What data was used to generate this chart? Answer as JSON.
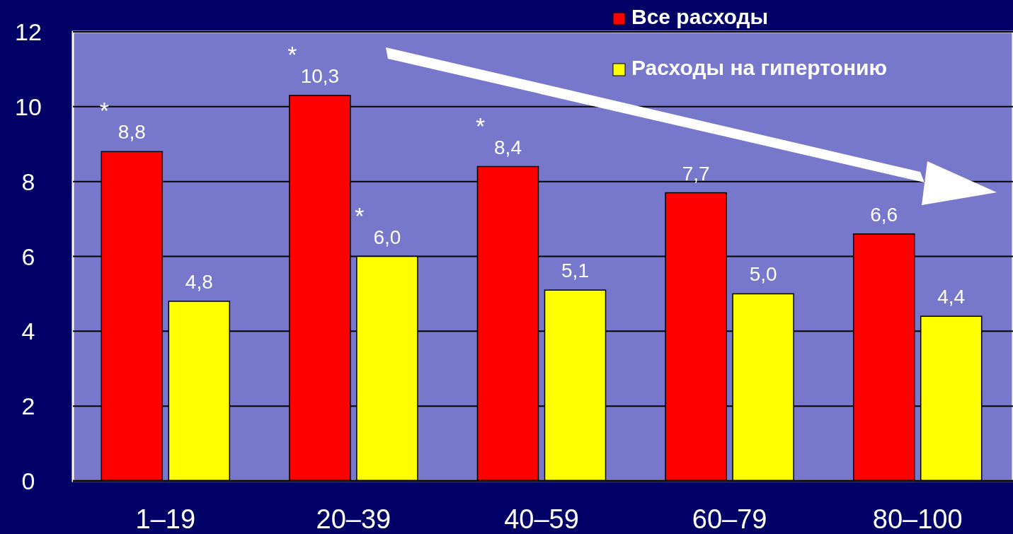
{
  "chart_data": {
    "type": "bar",
    "categories": [
      "1–19",
      "20–39",
      "40–59",
      "60–79",
      "80–100"
    ],
    "series": [
      {
        "name": "Все расходы",
        "color": "#ff0000",
        "values": [
          8.8,
          10.3,
          8.4,
          7.7,
          6.6
        ],
        "value_labels": [
          "8,8",
          "10,3",
          "8,4",
          "7,7",
          "6,6"
        ]
      },
      {
        "name": "Расходы на гипертонию",
        "color": "#ffff00",
        "values": [
          4.8,
          6.0,
          5.1,
          5.0,
          4.4
        ],
        "value_labels": [
          "4,8",
          "6,0",
          "5,1",
          "5,0",
          "4,4"
        ]
      }
    ],
    "ylim": [
      0,
      12
    ],
    "yticks": [
      0,
      2,
      4,
      6,
      8,
      10,
      12
    ],
    "grid": "y",
    "legend": "top right",
    "annotations": [
      {
        "text": "*",
        "x": "1–19",
        "y": 8.8
      },
      {
        "text": "*",
        "x": "20–39",
        "y": 10.3
      },
      {
        "text": "*",
        "x": "20–39",
        "y": 6.0
      },
      {
        "text": "*",
        "x": "40–59",
        "y": 8.4
      }
    ]
  }
}
